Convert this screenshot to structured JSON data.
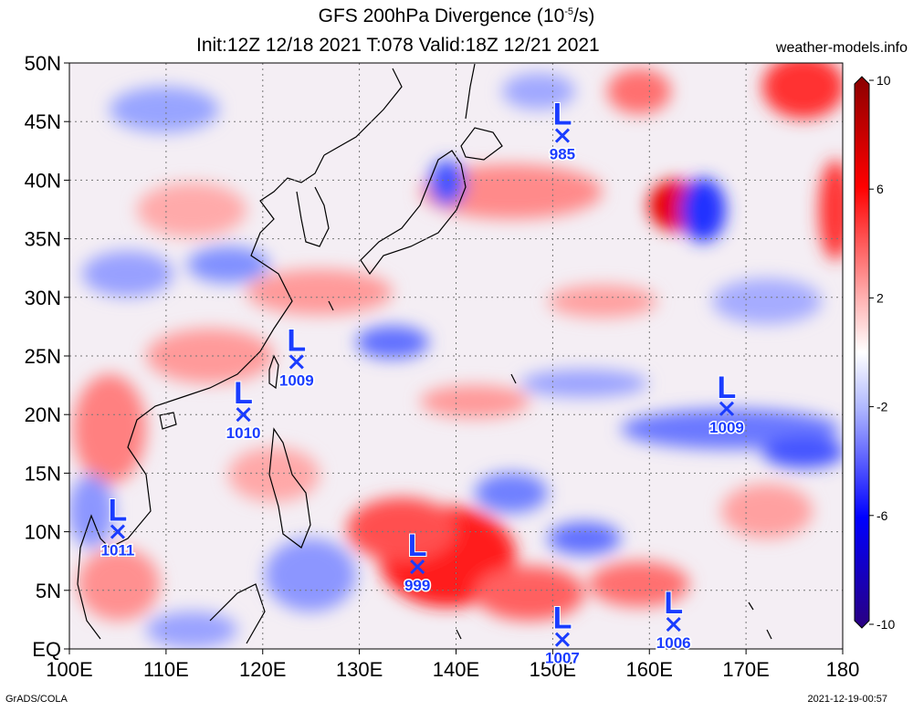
{
  "header": {
    "title_main": "GFS 200hPa Divergence (10",
    "title_exp": "-5",
    "title_unit": "/s)",
    "subtitle": "Init:12Z 12/18 2021 T:078 Valid:18Z 12/21 2021",
    "site": "weather-models.info"
  },
  "footer": {
    "left": "GrADS/COLA",
    "right": "2021-12-19-00:57"
  },
  "map": {
    "lat_labels": [
      "EQ",
      "5N",
      "10N",
      "15N",
      "20N",
      "25N",
      "30N",
      "35N",
      "40N",
      "45N",
      "50N"
    ],
    "lat_values": [
      0,
      5,
      10,
      15,
      20,
      25,
      30,
      35,
      40,
      45,
      50
    ],
    "lon_labels": [
      "100E",
      "110E",
      "120E",
      "130E",
      "140E",
      "150E",
      "160E",
      "170E",
      "180"
    ],
    "lon_values": [
      100,
      110,
      120,
      130,
      140,
      150,
      160,
      170,
      180
    ]
  },
  "colorbar": {
    "labels": [
      "10",
      "6",
      "2",
      "-2",
      "-6",
      "-10"
    ],
    "values": [
      10,
      6,
      2,
      -2,
      -6,
      -10
    ],
    "color_high": "#8b0000",
    "color_mid": "#ffffff",
    "color_low": "#2a0080"
  },
  "lows": [
    {
      "label": "L",
      "pressure": "985",
      "lon": 151,
      "lat": 43.8
    },
    {
      "label": "L",
      "pressure": "1009",
      "lon": 123.5,
      "lat": 24.5
    },
    {
      "label": "L",
      "pressure": "1010",
      "lon": 118,
      "lat": 20
    },
    {
      "label": "L",
      "pressure": "1009",
      "lon": 168,
      "lat": 20.5
    },
    {
      "label": "L",
      "pressure": "1011",
      "lon": 105,
      "lat": 10
    },
    {
      "label": "L",
      "pressure": "999",
      "lon": 136,
      "lat": 7
    },
    {
      "label": "L",
      "pressure": "1007",
      "lon": 151,
      "lat": 0.8
    },
    {
      "label": "L",
      "pressure": "1006",
      "lon": 162.5,
      "lat": 2.1
    }
  ]
}
